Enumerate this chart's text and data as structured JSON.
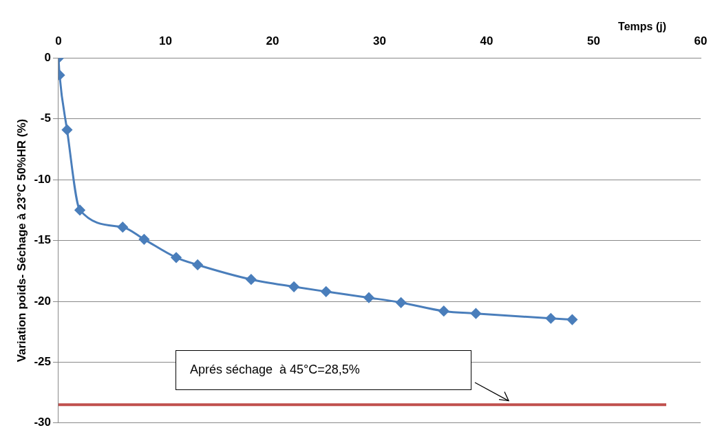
{
  "chart_data": {
    "type": "line",
    "xlabel": "Temps (j)",
    "ylabel": "Variation poids- Séchage à 23°C 50%HR (%)",
    "x": [
      0,
      0.1,
      0.8,
      2,
      6,
      8,
      11,
      13,
      18,
      22,
      25,
      29,
      32,
      36,
      39,
      46,
      48
    ],
    "series": [
      {
        "color": "#4a7ebb",
        "values": [
          0,
          -1.4,
          -5.9,
          -12.5,
          -13.9,
          -14.9,
          -16.4,
          -17,
          -18.2,
          -18.8,
          -19.2,
          -19.7,
          -20.1,
          -20.8,
          -21,
          -21.4,
          -21.5
        ]
      }
    ],
    "xlim": [
      0,
      60
    ],
    "xticks": [
      0,
      10,
      20,
      30,
      40,
      50,
      60
    ],
    "ylim": [
      -30,
      0
    ],
    "yticks": [
      -30,
      -25,
      -20,
      -15,
      -10,
      -5,
      0
    ],
    "grid": "y",
    "marker": "diamond",
    "line_style": "solid",
    "legend": false,
    "ref_lines": [
      {
        "axis": "y",
        "value": -28.5,
        "color": "#c0504d"
      }
    ],
    "annotations": [
      "Aprés séchage  à 45°C=28,5%"
    ]
  }
}
